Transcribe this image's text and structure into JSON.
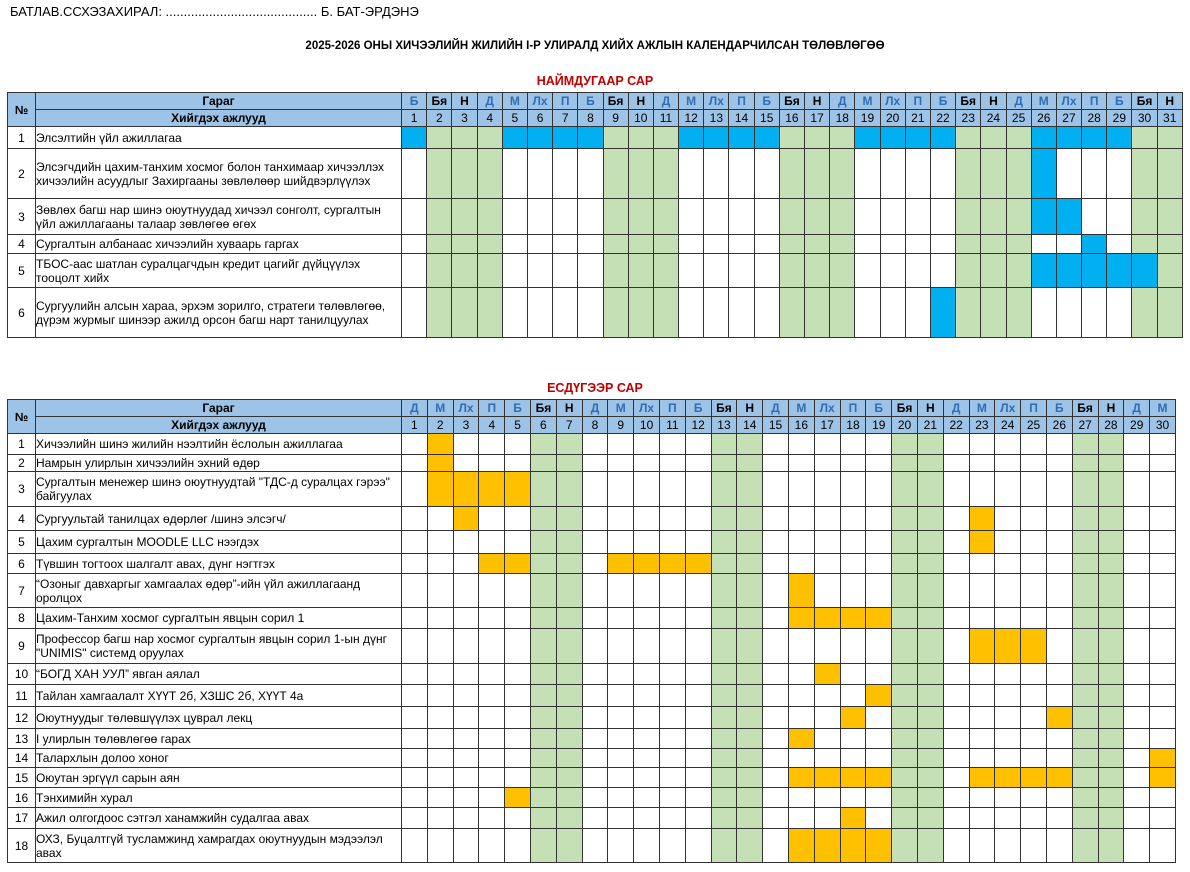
{
  "approval": {
    "label": "БАТЛАВ.ССХЭЗАХИРАЛ: .......................................... Б. БАТ-ЭРДЭНЭ"
  },
  "doc_title": "2025-2026 ОНЫ ХИЧЭЭЛИЙН ЖИЛИЙН I-Р УЛИРАЛД ХИЙХ АЖЛЫН КАЛЕНДАРЧИЛСАН ТӨЛӨВЛӨГӨӨ",
  "colors": {
    "header": "#9dc3e6",
    "weekend": "#c5e0b4",
    "august_mark": "#00b0f0",
    "september_mark": "#ffc000",
    "month_title": "#c00000"
  },
  "months": [
    {
      "name": "НАЙМДУГААР  САР",
      "top": 74,
      "header": {
        "no": "№",
        "col1": "Гараг",
        "col2": "Хийгдэх ажлууд"
      },
      "weekdays": [
        "Б",
        "Бя",
        "Н",
        "Д",
        "М",
        "Лх",
        "П",
        "Б",
        "Бя",
        "Н",
        "Д",
        "М",
        "Лх",
        "П",
        "Б",
        "Бя",
        "Н",
        "Д",
        "М",
        "Лх",
        "П",
        "Б",
        "Бя",
        "Н",
        "Д",
        "М",
        "Лх",
        "П",
        "Б",
        "Бя",
        "Н"
      ],
      "days": [
        "1",
        "2",
        "3",
        "4",
        "5",
        "6",
        "7",
        "8",
        "9",
        "10",
        "11",
        "12",
        "13",
        "14",
        "15",
        "16",
        "17",
        "18",
        "19",
        "20",
        "21",
        "22",
        "23",
        "24",
        "25",
        "26",
        "27",
        "28",
        "29",
        "30",
        "31"
      ],
      "weekend_days": [
        2,
        3,
        4,
        9,
        10,
        11,
        16,
        17,
        18,
        23,
        24,
        25,
        30,
        31
      ],
      "tasks": [
        {
          "no": "1",
          "text": "Элсэлтийн үйл ажиллагаа",
          "height": 22,
          "marked": [
            1,
            5,
            6,
            7,
            8,
            12,
            13,
            14,
            15,
            19,
            20,
            21,
            22,
            26,
            27,
            28,
            29
          ]
        },
        {
          "no": "2",
          "text": "Элсэгчдийн цахим-танхим хосмог болон танхимаар хичээллэх хичээлийн асуудлыг Захиргааны зөвлөлөөр шийдвэрлүүлэх",
          "height": 50,
          "marked": [
            26
          ]
        },
        {
          "no": "3",
          "text": "Зөвлөх багш нар шинэ оюутнуудад хичээл сонголт, сургалтын үйл ажиллагааны талаар зөвлөгөө өгөх",
          "height": 36,
          "marked": [
            26,
            27
          ]
        },
        {
          "no": "4",
          "text": "Сургалтын албанаас хичээлийн хуваарь гаргах",
          "height": 19,
          "marked": [
            28
          ]
        },
        {
          "no": "5",
          "text": "ТБОС-аас шатлан суралцагчдын кредит цагийг дүйцүүлэх тооцолт хийх",
          "height": 34,
          "marked": [
            26,
            27,
            28,
            29,
            30
          ]
        },
        {
          "no": "6",
          "text": "Сургуулийн алсын хараа, эрхэм зорилго, стратеги төлөвлөгөө, дүрэм журмыг шинээр ажилд орсон багш нарт танилцуулах",
          "height": 50,
          "marked": [
            22
          ]
        }
      ]
    },
    {
      "name": "ЕСДҮГЭЭР САР",
      "top": 381,
      "header": {
        "no": "№",
        "col1": "Гараг",
        "col2": "Хийгдэх ажлууд"
      },
      "weekdays": [
        "Д",
        "М",
        "Лх",
        "П",
        "Б",
        "Бя",
        "Н",
        "Д",
        "М",
        "Лх",
        "П",
        "Б",
        "Бя",
        "Н",
        "Д",
        "М",
        "Лх",
        "П",
        "Б",
        "Бя",
        "Н",
        "Д",
        "М",
        "Лх",
        "П",
        "Б",
        "Бя",
        "Н",
        "Д",
        "М"
      ],
      "days": [
        "1",
        "2",
        "3",
        "4",
        "5",
        "6",
        "7",
        "8",
        "9",
        "10",
        "11",
        "12",
        "13",
        "14",
        "15",
        "16",
        "17",
        "18",
        "19",
        "20",
        "21",
        "22",
        "23",
        "24",
        "25",
        "26",
        "27",
        "28",
        "29",
        "30"
      ],
      "weekend_days": [
        6,
        7,
        13,
        14,
        20,
        21,
        27,
        28
      ],
      "tasks": [
        {
          "no": "1",
          "text": "Хичээлийн шинэ жилийн нээлтийн ёслолын ажиллагаа",
          "height": 21,
          "marked": [
            2
          ]
        },
        {
          "no": "2",
          "text": "Намрын улирлын хичээлийн эхний өдөр",
          "height": 17,
          "marked": [
            2
          ]
        },
        {
          "no": "3",
          "text": "Сургалтын менежер шинэ оюутнуудтай \"ТДС-д суралцах гэрээ\" байгуулах",
          "height": 35,
          "marked": [
            2,
            3,
            4,
            5
          ]
        },
        {
          "no": "4",
          "text": "Сургуультай танилцах өдөрлөг /шинэ элсэгч/",
          "height": 24,
          "marked": [
            3,
            23
          ]
        },
        {
          "no": "5",
          "text": "Цахим сургалтын MOODLE LLC нээгдэх",
          "height": 23,
          "marked": [
            23
          ]
        },
        {
          "no": "6",
          "text": "Түвшин тогтоох шалгалт авах, дүнг нэгтгэх",
          "height": 20,
          "marked": [
            4,
            5,
            9,
            10,
            11,
            12
          ]
        },
        {
          "no": "7",
          "text": "“Озоныг давхаргыг хамгаалах өдөр”-ийн үйл ажиллагаанд оролцох",
          "height": 34,
          "marked": [
            16
          ]
        },
        {
          "no": "8",
          "text": "Цахим-Танхим хосмог сургалтын явцын сорил 1",
          "height": 21,
          "marked": [
            16,
            17,
            18,
            19
          ]
        },
        {
          "no": "9",
          "text": "Профессор багш нар хосмог сургалтын явцын сорил 1-ын дүнг \"UNIMIS\" системд оруулах",
          "height": 35,
          "marked": [
            23,
            24,
            25
          ]
        },
        {
          "no": "10",
          "text": "“БОГД ХАН УУЛ” явган аялал",
          "height": 21,
          "marked": [
            17
          ]
        },
        {
          "no": "11",
          "text": "Тайлан хамгаалалт ХҮҮТ 2б, ХЗШС 2б, ХҮҮТ 4а",
          "height": 22,
          "marked": [
            19
          ]
        },
        {
          "no": "12",
          "text": "Оюутнуудыг төлөвшүүлэх цуврал лекц",
          "height": 22,
          "marked": [
            18,
            26
          ]
        },
        {
          "no": "13",
          "text": "I улирлын төлөвлөгөө гарах",
          "height": 20,
          "marked": [
            16
          ]
        },
        {
          "no": "14",
          "text": "Талархлын долоо хоног",
          "height": 19,
          "marked": [
            30
          ]
        },
        {
          "no": "15",
          "text": "Оюутан эргүүл сарын аян",
          "height": 20,
          "marked": [
            16,
            17,
            18,
            19,
            23,
            24,
            25,
            26,
            30
          ]
        },
        {
          "no": "16",
          "text": "Тэнхимийн хурал",
          "height": 20,
          "marked": [
            5
          ]
        },
        {
          "no": "17",
          "text": "Ажил олгогдоос сэтгэл ханамжийн судалгаа авах",
          "height": 21,
          "marked": [
            18
          ]
        },
        {
          "no": "18",
          "text": "ОХЗ, Буцалтгүй тусламжинд хамрагдах оюутнуудын мэдээлэл авах",
          "height": 34,
          "marked": [
            16,
            17,
            18,
            19
          ]
        }
      ]
    }
  ]
}
